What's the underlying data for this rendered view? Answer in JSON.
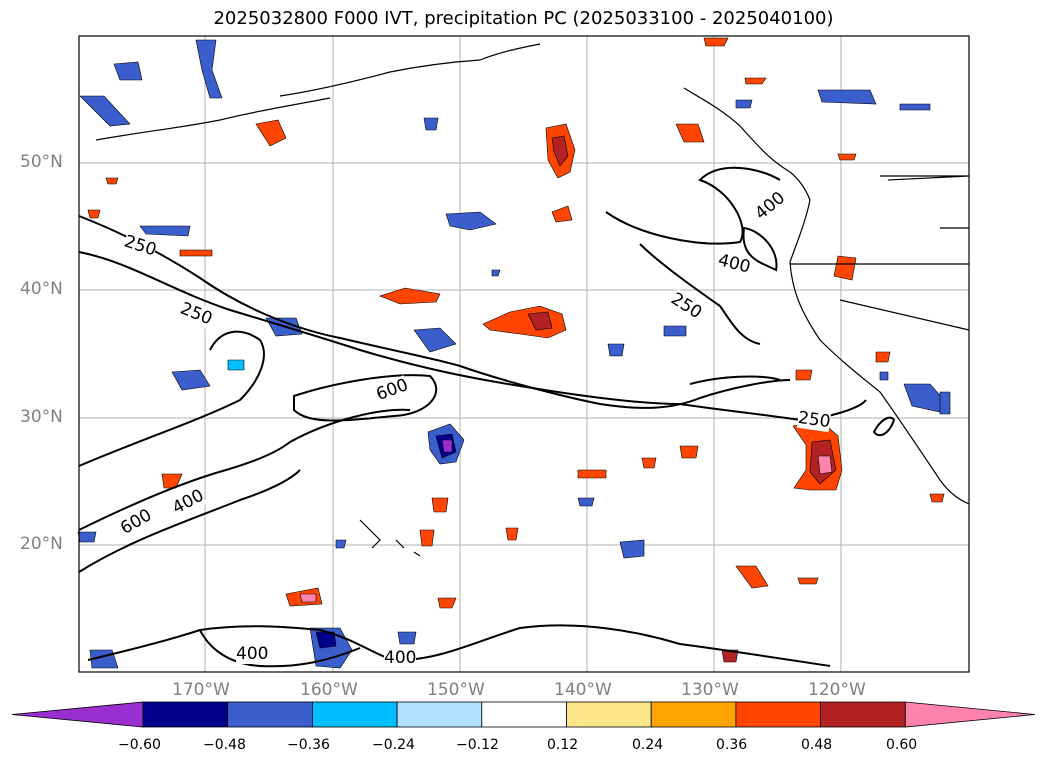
{
  "title": "2025032800 F000 IVT, precipitation PC (2025033100 - 2025040100)",
  "lat_labels": [
    "50°N",
    "40°N",
    "30°N",
    "20°N"
  ],
  "lon_labels": [
    "170°W",
    "160°W",
    "150°W",
    "140°W",
    "130°W",
    "120°W"
  ],
  "contour_labels": [
    "250",
    "250",
    "250",
    "250",
    "400",
    "400",
    "400",
    "400",
    "400",
    "600",
    "600"
  ],
  "colorbar": {
    "colors": [
      "#9a2fd0",
      "#00008b",
      "#3a5fcd",
      "#00bfff",
      "#b0e2ff",
      "#ffffff",
      "#fde68a",
      "#ffa500",
      "#ff4500",
      "#b22222",
      "#ff82ab"
    ],
    "tick_labels": [
      "−0.60",
      "−0.48",
      "−0.36",
      "−0.24",
      "−0.12",
      "0.12",
      "0.24",
      "0.36",
      "0.48",
      "0.60"
    ]
  }
}
